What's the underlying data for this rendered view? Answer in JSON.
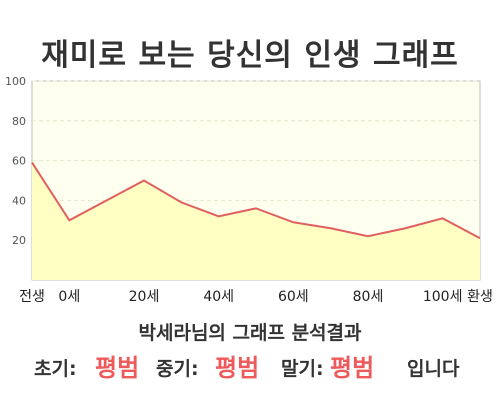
{
  "title": "재미로 보는 당신의 인생 그래프",
  "colors": {
    "line": "#e06060",
    "fill": "#ffffc4",
    "plot_bg": "#fffff0",
    "accent": "#ee5a5a"
  },
  "chart_data": {
    "type": "area",
    "x": [
      "전생",
      "0세",
      "",
      "20세",
      "",
      "40세",
      "",
      "60세",
      "",
      "80세",
      "",
      "100세",
      "환생"
    ],
    "values": [
      59,
      30,
      40,
      50,
      39,
      32,
      36,
      29,
      26,
      22,
      26,
      31,
      21
    ],
    "y_ticks": [
      20,
      40,
      60,
      80,
      100
    ],
    "ylim": [
      0,
      100
    ],
    "grid": true
  },
  "summary": {
    "title": "박세라님의 그래프 분석결과",
    "early_label": "초기:",
    "early_value": "평범",
    "middle_label": "중기:",
    "middle_value": "평범",
    "late_label": "말기:",
    "late_value": "평범",
    "suffix": "입니다"
  }
}
